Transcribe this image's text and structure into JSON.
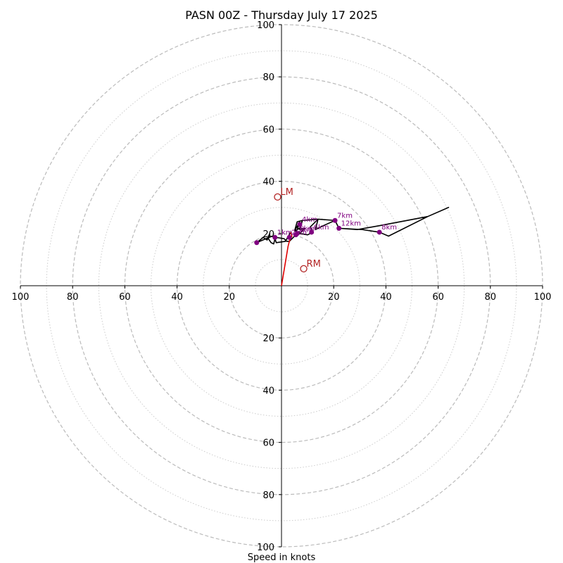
{
  "chart_data": {
    "type": "hodograph",
    "title": "PASN 00Z - Thursday July 17 2025",
    "xlabel": "Speed in knots",
    "range": [
      -100,
      100
    ],
    "ring_step_major": 20,
    "ring_step_minor": 10,
    "axis_tick_labels": [
      "100",
      "80",
      "60",
      "40",
      "20",
      "20",
      "40",
      "60",
      "80",
      "100"
    ],
    "axis_tick_values": [
      -100,
      -80,
      -60,
      -40,
      -20,
      20,
      40,
      60,
      80,
      100
    ],
    "colors": {
      "hodograph_line": "#000000",
      "low_level_line": "#e00000",
      "height_marker": "#800080",
      "storm_motion": "#b22222",
      "grid": "#bbbbbb"
    },
    "hodograph_path": [
      [
        0,
        0
      ],
      [
        1.5,
        9
      ],
      [
        2.5,
        15
      ],
      [
        3,
        17
      ],
      [
        4,
        19
      ],
      [
        3.5,
        20.5
      ],
      [
        1.5,
        17
      ],
      [
        -2,
        16.5
      ],
      [
        -2.5,
        18
      ],
      [
        -3,
        16
      ],
      [
        -4,
        16.5
      ],
      [
        -5,
        18
      ],
      [
        -4.5,
        20
      ],
      [
        -5.5,
        17.5
      ],
      [
        -7,
        18.5
      ],
      [
        -9.5,
        16.5
      ],
      [
        -6,
        18
      ],
      [
        -3.5,
        19
      ],
      [
        -2,
        18.5
      ],
      [
        1,
        18
      ],
      [
        2,
        17
      ],
      [
        3,
        17
      ],
      [
        5,
        19
      ],
      [
        6,
        21.5
      ],
      [
        7,
        24.5
      ],
      [
        5,
        21
      ],
      [
        7,
        22
      ],
      [
        8,
        25
      ],
      [
        7,
        21.5
      ],
      [
        9,
        22
      ],
      [
        7,
        20
      ],
      [
        10,
        19.5
      ],
      [
        12,
        20.5
      ],
      [
        11,
        22.5
      ],
      [
        14,
        25.5
      ],
      [
        13,
        21.5
      ],
      [
        16,
        23
      ],
      [
        20.5,
        25
      ],
      [
        22,
        22
      ],
      [
        31,
        21.5
      ],
      [
        37.5,
        20.5
      ],
      [
        41,
        19
      ],
      [
        56,
        26.5
      ],
      [
        64,
        30
      ],
      [
        56,
        26.5
      ],
      [
        37.5,
        23
      ],
      [
        29,
        21.5
      ],
      [
        22,
        22
      ],
      [
        20.5,
        25
      ],
      [
        14,
        25.5
      ],
      [
        8,
        25
      ],
      [
        6,
        24.5
      ],
      [
        5,
        21
      ],
      [
        7,
        20.5
      ]
    ],
    "height_markers": [
      {
        "label": "",
        "u": -9.5,
        "v": 16.5
      },
      {
        "label": "1km",
        "u": -2.5,
        "v": 18.5
      },
      {
        "label": "2km",
        "u": 3,
        "v": 18.5
      },
      {
        "label": "3km",
        "u": 5.5,
        "v": 19.5
      },
      {
        "label": "4km",
        "u": 7,
        "v": 23.5
      },
      {
        "label": "5km",
        "u": 6,
        "v": 20
      },
      {
        "label": "6km",
        "u": 11.5,
        "v": 20.5
      },
      {
        "label": "7km",
        "u": 20.5,
        "v": 25
      },
      {
        "label": "8km",
        "u": 37.5,
        "v": 20.5
      },
      {
        "label": "12km",
        "u": 22,
        "v": 22
      }
    ],
    "storm_motion": [
      {
        "label": "LM",
        "u": -1.5,
        "v": 34
      },
      {
        "label": "RM",
        "u": 8.5,
        "v": 6.5
      }
    ]
  }
}
